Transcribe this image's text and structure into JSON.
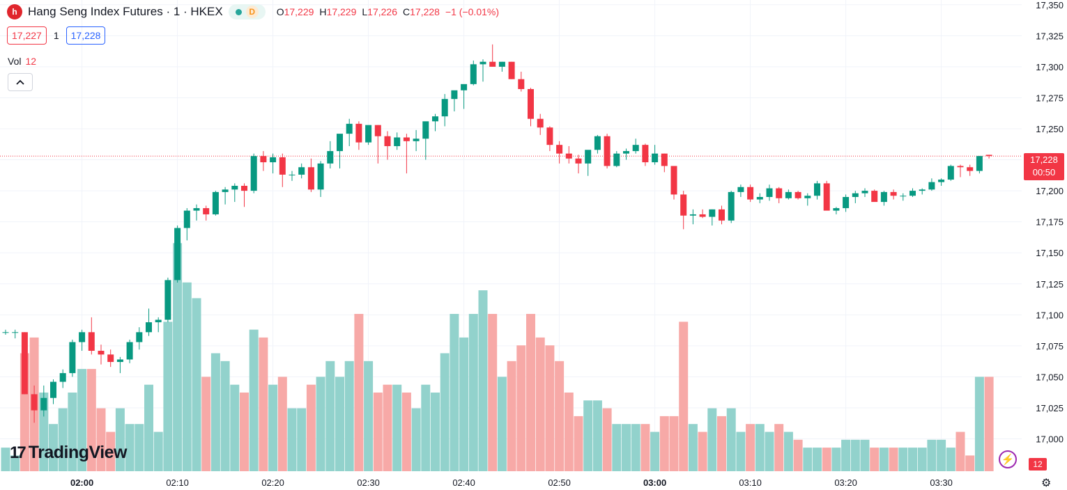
{
  "header": {
    "symbol_title": "Hang Seng Index Futures · 1 · HKEX",
    "logo_letter": "h",
    "status_letter": "D",
    "ohlc": [
      {
        "label": "O",
        "value": "17,229"
      },
      {
        "label": "H",
        "value": "17,229"
      },
      {
        "label": "L",
        "value": "17,226"
      },
      {
        "label": "C",
        "value": "17,228"
      }
    ],
    "change": "−1 (−0.01%)"
  },
  "quote": {
    "sell": "17,227",
    "spread": "1",
    "buy": "17,228"
  },
  "volume_legend": {
    "label": "Vol",
    "value": "12"
  },
  "collapse_icon": "chevron-up-icon",
  "brand": {
    "mark": "17",
    "name": "TradingView"
  },
  "price_badge": {
    "price": "17,228",
    "countdown": "00:50"
  },
  "volume_badge": "12",
  "colors": {
    "up": "#089981",
    "down": "#f23645",
    "vol_up": "#92d2cc",
    "vol_down": "#f7a9a7",
    "grid": "#f0f3fa",
    "axis_text": "#131722",
    "last_price_line": "#f23645"
  },
  "chart_data": {
    "type": "candlestick",
    "ylim": [
      16993,
      17351
    ],
    "y_ticks": [
      "17,350",
      "17,325",
      "17,300",
      "17,275",
      "17,250",
      "17,225",
      "17,200",
      "17,175",
      "17,150",
      "17,125",
      "17,100",
      "17,075",
      "17,050",
      "17,025",
      "17,000"
    ],
    "x_ticks": [
      {
        "label": "02:00",
        "bar": 8,
        "bold": true
      },
      {
        "label": "02:10",
        "bar": 18
      },
      {
        "label": "02:20",
        "bar": 28
      },
      {
        "label": "02:30",
        "bar": 38
      },
      {
        "label": "02:40",
        "bar": 48
      },
      {
        "label": "02:50",
        "bar": 58
      },
      {
        "label": "03:00",
        "bar": 68,
        "bold": true
      },
      {
        "label": "03:10",
        "bar": 78
      },
      {
        "label": "03:20",
        "bar": 88
      },
      {
        "label": "03:30",
        "bar": 98
      }
    ],
    "last_price": 17228,
    "ohlcv": [
      [
        17086,
        17088,
        17084,
        17086,
        3
      ],
      [
        17086,
        17088,
        17081,
        17086,
        2
      ],
      [
        17086,
        17086,
        17036,
        17036,
        15
      ],
      [
        17036,
        17043,
        17013,
        17023,
        17
      ],
      [
        17023,
        17043,
        17018,
        17033,
        10
      ],
      [
        17033,
        17048,
        17028,
        17046,
        6
      ],
      [
        17046,
        17056,
        17041,
        17053,
        8
      ],
      [
        17053,
        17080,
        17050,
        17078,
        10
      ],
      [
        17078,
        17088,
        17071,
        17086,
        13
      ],
      [
        17086,
        17098,
        17068,
        17071,
        13
      ],
      [
        17071,
        17076,
        17060,
        17068,
        8
      ],
      [
        17068,
        17072,
        17058,
        17062,
        5
      ],
      [
        17062,
        17066,
        17053,
        17064,
        8
      ],
      [
        17064,
        17080,
        17061,
        17078,
        6
      ],
      [
        17078,
        17090,
        17072,
        17086,
        6
      ],
      [
        17086,
        17105,
        17083,
        17094,
        11
      ],
      [
        17094,
        17098,
        17086,
        17096,
        5
      ],
      [
        17096,
        17130,
        17094,
        17128,
        19
      ],
      [
        17128,
        17172,
        17126,
        17170,
        29
      ],
      [
        17170,
        17186,
        17160,
        17184,
        24
      ],
      [
        17184,
        17189,
        17176,
        17186,
        22
      ],
      [
        17186,
        17188,
        17176,
        17181,
        12
      ],
      [
        17181,
        17200,
        17180,
        17199,
        15
      ],
      [
        17199,
        17203,
        17189,
        17201,
        14
      ],
      [
        17201,
        17206,
        17191,
        17204,
        11
      ],
      [
        17204,
        17206,
        17187,
        17200,
        10
      ],
      [
        17200,
        17230,
        17198,
        17228,
        18
      ],
      [
        17228,
        17232,
        17216,
        17223,
        17
      ],
      [
        17223,
        17230,
        17214,
        17227,
        11
      ],
      [
        17227,
        17230,
        17203,
        17213,
        12
      ],
      [
        17213,
        17216,
        17208,
        17213,
        8
      ],
      [
        17213,
        17222,
        17210,
        17219,
        8
      ],
      [
        17219,
        17226,
        17199,
        17201,
        11
      ],
      [
        17201,
        17224,
        17195,
        17222,
        12
      ],
      [
        17222,
        17240,
        17218,
        17232,
        14
      ],
      [
        17232,
        17240,
        17218,
        17246,
        12
      ],
      [
        17246,
        17258,
        17236,
        17254,
        14
      ],
      [
        17254,
        17256,
        17233,
        17239,
        20
      ],
      [
        17239,
        17252,
        17237,
        17253,
        14
      ],
      [
        17253,
        17253,
        17222,
        17244,
        10
      ],
      [
        17244,
        17248,
        17225,
        17236,
        11
      ],
      [
        17236,
        17247,
        17233,
        17243,
        11
      ],
      [
        17243,
        17246,
        17214,
        17240,
        10
      ],
      [
        17240,
        17249,
        17232,
        17242,
        8
      ],
      [
        17242,
        17254,
        17225,
        17256,
        11
      ],
      [
        17256,
        17262,
        17248,
        17260,
        10
      ],
      [
        17260,
        17278,
        17252,
        17274,
        15
      ],
      [
        17274,
        17280,
        17264,
        17281,
        20
      ],
      [
        17281,
        17285,
        17266,
        17286,
        17
      ],
      [
        17286,
        17305,
        17285,
        17302,
        20
      ],
      [
        17302,
        17306,
        17288,
        17304,
        23
      ],
      [
        17304,
        17318,
        17300,
        17300,
        20
      ],
      [
        17300,
        17304,
        17296,
        17304,
        12
      ],
      [
        17304,
        17304,
        17290,
        17290,
        14
      ],
      [
        17290,
        17296,
        17280,
        17282,
        16
      ],
      [
        17282,
        17283,
        17252,
        17258,
        20
      ],
      [
        17258,
        17262,
        17245,
        17251,
        17
      ],
      [
        17251,
        17252,
        17232,
        17237,
        16
      ],
      [
        17237,
        17240,
        17222,
        17230,
        14
      ],
      [
        17230,
        17236,
        17222,
        17226,
        10
      ],
      [
        17226,
        17229,
        17214,
        17222,
        7
      ],
      [
        17222,
        17228,
        17212,
        17233,
        9
      ],
      [
        17233,
        17245,
        17230,
        17244,
        9
      ],
      [
        17244,
        17246,
        17218,
        17220,
        8
      ],
      [
        17220,
        17232,
        17219,
        17230,
        6
      ],
      [
        17230,
        17234,
        17225,
        17232,
        6
      ],
      [
        17232,
        17242,
        17230,
        17237,
        6
      ],
      [
        17237,
        17238,
        17220,
        17223,
        6
      ],
      [
        17223,
        17237,
        17221,
        17230,
        5
      ],
      [
        17230,
        17230,
        17215,
        17220,
        7
      ],
      [
        17220,
        17215,
        17193,
        17197,
        7
      ],
      [
        17197,
        17200,
        17169,
        17180,
        19
      ],
      [
        17180,
        17185,
        17173,
        17181,
        6
      ],
      [
        17181,
        17185,
        17178,
        17179,
        5
      ],
      [
        17179,
        17185,
        17172,
        17185,
        8
      ],
      [
        17185,
        17188,
        17173,
        17176,
        7
      ],
      [
        17176,
        17200,
        17174,
        17199,
        8
      ],
      [
        17199,
        17205,
        17195,
        17203,
        5
      ],
      [
        17203,
        17205,
        17191,
        17193,
        6
      ],
      [
        17193,
        17198,
        17190,
        17195,
        6
      ],
      [
        17195,
        17205,
        17192,
        17202,
        5
      ],
      [
        17202,
        17203,
        17190,
        17194,
        6
      ],
      [
        17194,
        17201,
        17193,
        17199,
        5
      ],
      [
        17199,
        17200,
        17193,
        17194,
        4
      ],
      [
        17194,
        17198,
        17188,
        17196,
        3
      ],
      [
        17196,
        17208,
        17193,
        17206,
        3
      ],
      [
        17206,
        17208,
        17185,
        17184,
        3
      ],
      [
        17184,
        17187,
        17181,
        17186,
        3
      ],
      [
        17186,
        17197,
        17183,
        17195,
        4
      ],
      [
        17195,
        17200,
        17190,
        17198,
        4
      ],
      [
        17198,
        17202,
        17195,
        17200,
        4
      ],
      [
        17200,
        17201,
        17193,
        17191,
        3
      ],
      [
        17191,
        17200,
        17188,
        17199,
        3
      ],
      [
        17199,
        17201,
        17193,
        17196,
        3
      ],
      [
        17196,
        17198,
        17192,
        17196,
        3
      ],
      [
        17196,
        17202,
        17195,
        17200,
        3
      ],
      [
        17200,
        17202,
        17197,
        17201,
        3
      ],
      [
        17201,
        17210,
        17200,
        17207,
        4
      ],
      [
        17207,
        17210,
        17204,
        17209,
        4
      ],
      [
        17209,
        17221,
        17208,
        17220,
        3
      ],
      [
        17220,
        17221,
        17211,
        17219,
        5
      ],
      [
        17219,
        17221,
        17212,
        17216,
        2
      ],
      [
        17216,
        17228,
        17214,
        17228,
        12
      ],
      [
        17229,
        17229,
        17226,
        17228,
        12
      ]
    ]
  }
}
